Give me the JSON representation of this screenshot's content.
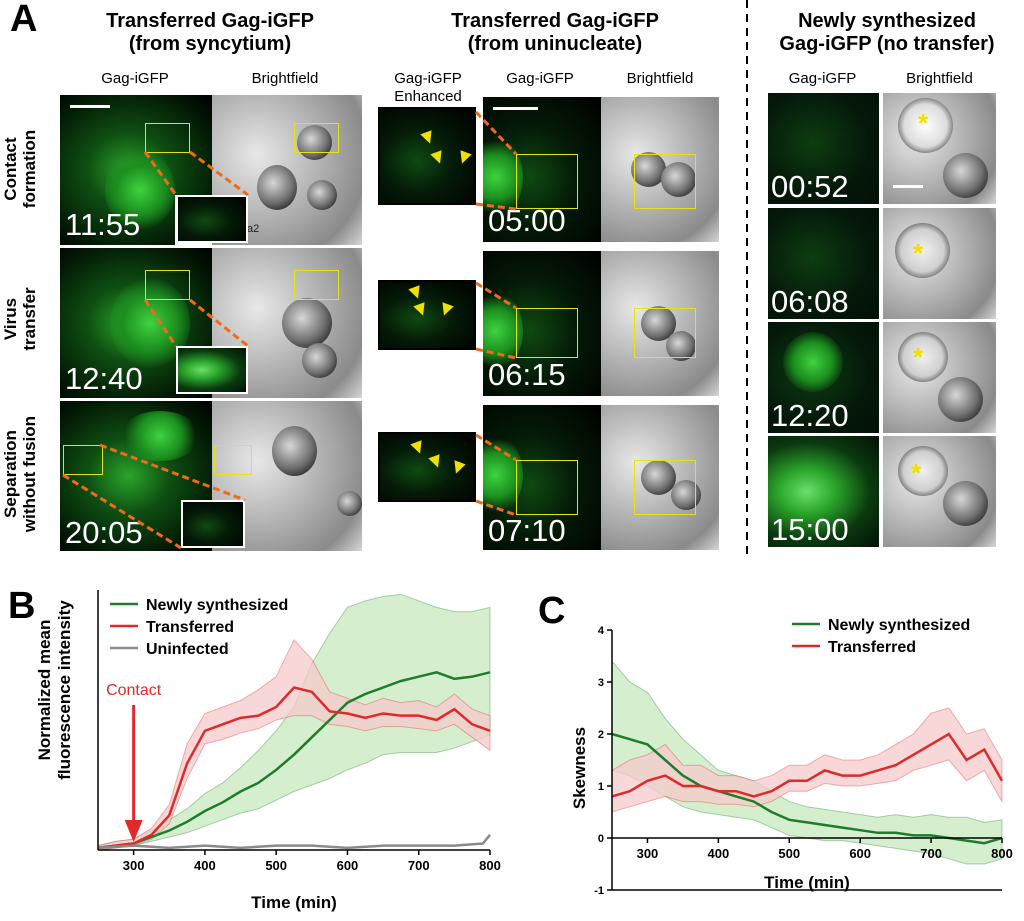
{
  "panel_a": {
    "letter": "A",
    "group1": {
      "title_line1": "Transferred Gag-iGFP",
      "title_line2": "(from syncytium)",
      "col1": "Gag-iGFP",
      "col2": "Brightfield"
    },
    "group2": {
      "title_line1": "Transferred Gag-iGFP",
      "title_line2": "(from uninucleate)",
      "col0_line1": "Gag-iGFP",
      "col0_line2": "Enhanced",
      "col1": "Gag-iGFP",
      "col2": "Brightfield"
    },
    "group3": {
      "title_line1": "Newly synthesized",
      "title_line2": "Gag-iGFP (no transfer)",
      "col1": "Gag-iGFP",
      "col2": "Brightfield"
    },
    "row_labels": [
      {
        "line1": "Contact",
        "line2": "formation"
      },
      {
        "line1": "Virus",
        "line2": "transfer"
      },
      {
        "line1": "Separation",
        "line2": "without fusion"
      }
    ],
    "timestamps_g1": [
      "11:55",
      "12:40",
      "20:05"
    ],
    "timestamps_g2": [
      "05:00",
      "06:15",
      "07:10"
    ],
    "timestamps_g3": [
      "00:52",
      "06:08",
      "12:20",
      "15:00"
    ],
    "bf_mark": "a2",
    "star": "*"
  },
  "chart_data": [
    {
      "panel": "B",
      "type": "line",
      "xlabel": "Time (min)",
      "ylabel_line1": "Normalized mean",
      "ylabel_line2": "fluorescence intensity",
      "xlim": [
        250,
        800
      ],
      "ylim": [
        0,
        1.2
      ],
      "xticks": [
        300,
        400,
        500,
        600,
        700,
        800
      ],
      "legend_position": "top-left",
      "annotation": {
        "text": "Contact",
        "x": 300
      },
      "series": [
        {
          "name": "Newly synthesized",
          "color": "#1e7d2c",
          "band": "#c7e8be",
          "x": [
            250,
            275,
            300,
            325,
            350,
            375,
            400,
            425,
            450,
            475,
            500,
            525,
            550,
            575,
            600,
            625,
            650,
            675,
            700,
            725,
            750,
            775,
            800
          ],
          "y": [
            0.01,
            0.02,
            0.03,
            0.06,
            0.09,
            0.13,
            0.18,
            0.22,
            0.27,
            0.31,
            0.37,
            0.44,
            0.52,
            0.6,
            0.68,
            0.72,
            0.75,
            0.78,
            0.8,
            0.82,
            0.79,
            0.8,
            0.82
          ],
          "y_low": [
            0.0,
            0.01,
            0.02,
            0.04,
            0.06,
            0.08,
            0.11,
            0.14,
            0.17,
            0.19,
            0.23,
            0.27,
            0.3,
            0.33,
            0.37,
            0.4,
            0.44,
            0.45,
            0.45,
            0.45,
            0.47,
            0.5,
            0.53
          ],
          "y_high": [
            0.02,
            0.04,
            0.05,
            0.09,
            0.14,
            0.19,
            0.26,
            0.31,
            0.38,
            0.46,
            0.55,
            0.66,
            0.86,
            1.0,
            1.12,
            1.15,
            1.17,
            1.18,
            1.15,
            1.12,
            1.1,
            1.1,
            1.12
          ]
        },
        {
          "name": "Transferred",
          "color": "#e02a2a",
          "band": "#f6c9cc",
          "x": [
            250,
            275,
            300,
            325,
            350,
            375,
            400,
            425,
            450,
            475,
            500,
            525,
            550,
            575,
            600,
            625,
            650,
            675,
            700,
            725,
            750,
            775,
            800
          ],
          "y": [
            0.01,
            0.02,
            0.03,
            0.07,
            0.16,
            0.4,
            0.55,
            0.58,
            0.61,
            0.62,
            0.66,
            0.75,
            0.73,
            0.64,
            0.63,
            0.61,
            0.63,
            0.62,
            0.62,
            0.6,
            0.65,
            0.58,
            0.55
          ],
          "y_low": [
            0.0,
            0.01,
            0.02,
            0.05,
            0.12,
            0.33,
            0.49,
            0.51,
            0.54,
            0.56,
            0.6,
            0.62,
            0.62,
            0.58,
            0.57,
            0.55,
            0.57,
            0.57,
            0.56,
            0.55,
            0.58,
            0.52,
            0.46
          ],
          "y_high": [
            0.02,
            0.04,
            0.05,
            0.1,
            0.21,
            0.49,
            0.63,
            0.66,
            0.69,
            0.74,
            0.8,
            0.97,
            0.88,
            0.73,
            0.7,
            0.67,
            0.7,
            0.68,
            0.69,
            0.66,
            0.72,
            0.65,
            0.62
          ]
        },
        {
          "name": "Uninfected",
          "color": "#8a8a8a",
          "x": [
            250,
            300,
            350,
            400,
            450,
            500,
            550,
            600,
            650,
            700,
            750,
            790,
            800
          ],
          "y": [
            0.01,
            0.02,
            0.01,
            0.02,
            0.01,
            0.02,
            0.02,
            0.01,
            0.02,
            0.02,
            0.02,
            0.03,
            0.07
          ]
        }
      ]
    },
    {
      "panel": "C",
      "type": "line",
      "xlabel": "Time (min)",
      "ylabel": "Skewness",
      "xlim": [
        250,
        800
      ],
      "ylim": [
        -1,
        4
      ],
      "xticks": [
        300,
        400,
        500,
        600,
        700,
        800
      ],
      "yticks": [
        -1,
        0,
        1,
        2,
        3,
        4
      ],
      "legend_position": "top-right",
      "series": [
        {
          "name": "Newly synthesized",
          "color": "#1e7d2c",
          "band": "#c7e8be",
          "x": [
            250,
            275,
            300,
            325,
            350,
            375,
            400,
            425,
            450,
            475,
            500,
            525,
            550,
            575,
            600,
            625,
            650,
            675,
            700,
            725,
            750,
            775,
            800
          ],
          "y": [
            2.0,
            1.9,
            1.8,
            1.5,
            1.2,
            1.0,
            0.9,
            0.8,
            0.7,
            0.5,
            0.35,
            0.3,
            0.25,
            0.2,
            0.15,
            0.1,
            0.1,
            0.05,
            0.05,
            0.0,
            -0.05,
            -0.1,
            0.0
          ],
          "y_low": [
            1.3,
            1.2,
            1.0,
            0.8,
            0.6,
            0.5,
            0.45,
            0.4,
            0.35,
            0.2,
            0.05,
            0.0,
            -0.05,
            -0.05,
            -0.1,
            -0.15,
            -0.2,
            -0.25,
            -0.3,
            -0.4,
            -0.5,
            -0.5,
            -0.4
          ],
          "y_high": [
            3.4,
            3.0,
            2.8,
            2.3,
            1.9,
            1.6,
            1.3,
            1.2,
            1.1,
            0.9,
            0.7,
            0.6,
            0.55,
            0.5,
            0.45,
            0.4,
            0.45,
            0.4,
            0.45,
            0.4,
            0.4,
            0.3,
            0.35
          ]
        },
        {
          "name": "Transferred",
          "color": "#e02a2a",
          "band": "#f6c9cc",
          "x": [
            250,
            275,
            300,
            325,
            350,
            375,
            400,
            425,
            450,
            475,
            500,
            525,
            550,
            575,
            600,
            625,
            650,
            675,
            700,
            725,
            750,
            775,
            800
          ],
          "y": [
            0.8,
            0.9,
            1.1,
            1.2,
            1.0,
            1.0,
            0.9,
            0.9,
            0.8,
            0.9,
            1.1,
            1.1,
            1.3,
            1.2,
            1.2,
            1.3,
            1.4,
            1.6,
            1.8,
            2.0,
            1.5,
            1.7,
            1.1
          ],
          "y_low": [
            0.5,
            0.6,
            0.7,
            0.8,
            0.7,
            0.7,
            0.65,
            0.65,
            0.6,
            0.7,
            0.9,
            0.9,
            1.05,
            1.0,
            1.0,
            1.05,
            1.1,
            1.3,
            1.4,
            1.5,
            1.1,
            1.3,
            0.7
          ],
          "y_high": [
            1.3,
            1.5,
            1.6,
            1.8,
            1.4,
            1.4,
            1.2,
            1.2,
            1.1,
            1.2,
            1.4,
            1.4,
            1.6,
            1.5,
            1.5,
            1.6,
            1.8,
            2.0,
            2.4,
            2.5,
            2.0,
            2.1,
            1.5
          ]
        }
      ]
    }
  ]
}
